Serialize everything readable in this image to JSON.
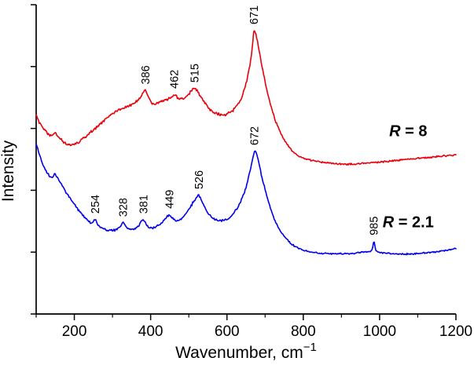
{
  "chart_data": {
    "type": "line",
    "xlabel": "Wavenumber, cm⁻¹",
    "xlabel_base": "Wavenumber, cm",
    "xlabel_sup": "−1",
    "ylabel": "Intensity",
    "xlim": [
      100,
      1200
    ],
    "ylim": [
      0,
      100
    ],
    "x_major_ticks": [
      200,
      400,
      600,
      800,
      1000,
      1200
    ],
    "x_minor_ticks": [
      100,
      300,
      500,
      700,
      900,
      1100
    ],
    "grid": false,
    "legend_position": "right-inline",
    "axis_color": "#000000",
    "background": "#ffffff",
    "series": [
      {
        "name": "R = 8",
        "name_var": "R",
        "name_rest": " = 8",
        "color": "#e8000b",
        "label_anchor": {
          "x": 1075,
          "y": 57.5
        },
        "peak_labels": [
          {
            "x": 386,
            "text": "386"
          },
          {
            "x": 462,
            "text": "462"
          },
          {
            "x": 515,
            "text": "515"
          },
          {
            "x": 671,
            "text": "671"
          }
        ],
        "points": [
          [
            100,
            64.2
          ],
          [
            107,
            62.3
          ],
          [
            115,
            60.6
          ],
          [
            124,
            59.2
          ],
          [
            133,
            58.2
          ],
          [
            142,
            57.9
          ],
          [
            150,
            58.6
          ],
          [
            158,
            57.4
          ],
          [
            167,
            56.2
          ],
          [
            176,
            55.3
          ],
          [
            186,
            54.7
          ],
          [
            196,
            54.6
          ],
          [
            207,
            55.2
          ],
          [
            219,
            56.2
          ],
          [
            232,
            57.6
          ],
          [
            246,
            59.1
          ],
          [
            260,
            60.7
          ],
          [
            275,
            62.3
          ],
          [
            290,
            63.8
          ],
          [
            305,
            65.1
          ],
          [
            320,
            66.1
          ],
          [
            335,
            66.9
          ],
          [
            350,
            67.7
          ],
          [
            362,
            68.6
          ],
          [
            374,
            70.0
          ],
          [
            386,
            72.2
          ],
          [
            394,
            69.9
          ],
          [
            403,
            68.1
          ],
          [
            413,
            67.9
          ],
          [
            425,
            68.5
          ],
          [
            437,
            69.1
          ],
          [
            449,
            69.7
          ],
          [
            462,
            70.8
          ],
          [
            471,
            69.9
          ],
          [
            481,
            69.5
          ],
          [
            491,
            70.2
          ],
          [
            502,
            71.4
          ],
          [
            515,
            72.8
          ],
          [
            527,
            71.2
          ],
          [
            539,
            68.9
          ],
          [
            552,
            66.6
          ],
          [
            566,
            65.2
          ],
          [
            581,
            64.5
          ],
          [
            596,
            64.5
          ],
          [
            611,
            65.4
          ],
          [
            626,
            67.3
          ],
          [
            640,
            70.6
          ],
          [
            651,
            74.9
          ],
          [
            660,
            80.3
          ],
          [
            666,
            85.6
          ],
          [
            671,
            91.6
          ],
          [
            677,
            89.6
          ],
          [
            684,
            85.2
          ],
          [
            692,
            79.9
          ],
          [
            701,
            74.3
          ],
          [
            711,
            69.2
          ],
          [
            723,
            64.0
          ],
          [
            736,
            59.7
          ],
          [
            751,
            56.0
          ],
          [
            768,
            53.2
          ],
          [
            786,
            51.3
          ],
          [
            806,
            50.2
          ],
          [
            828,
            49.5
          ],
          [
            852,
            49.0
          ],
          [
            877,
            48.7
          ],
          [
            902,
            48.5
          ],
          [
            928,
            48.5
          ],
          [
            953,
            48.7
          ],
          [
            978,
            48.9
          ],
          [
            1004,
            49.2
          ],
          [
            1030,
            49.5
          ],
          [
            1056,
            49.8
          ],
          [
            1082,
            50.1
          ],
          [
            1108,
            50.4
          ],
          [
            1134,
            50.7
          ],
          [
            1160,
            51.0
          ],
          [
            1180,
            51.2
          ],
          [
            1200,
            51.4
          ]
        ]
      },
      {
        "name": "R = 2.1",
        "name_var": "R",
        "name_rest": " = 2.1",
        "color": "#0000ee",
        "label_anchor": {
          "x": 1075,
          "y": 28.0
        },
        "peak_labels": [
          {
            "x": 254,
            "text": "254"
          },
          {
            "x": 328,
            "text": "328"
          },
          {
            "x": 381,
            "text": "381"
          },
          {
            "x": 449,
            "text": "449"
          },
          {
            "x": 526,
            "text": "526"
          },
          {
            "x": 672,
            "text": "672"
          },
          {
            "x": 985,
            "text": "985"
          }
        ],
        "points": [
          [
            100,
            55.0
          ],
          [
            110,
            51.0
          ],
          [
            120,
            47.5
          ],
          [
            130,
            45.5
          ],
          [
            140,
            44.3
          ],
          [
            150,
            45.2
          ],
          [
            158,
            43.5
          ],
          [
            170,
            41.0
          ],
          [
            185,
            38.0
          ],
          [
            200,
            35.5
          ],
          [
            215,
            33.0
          ],
          [
            230,
            31.0
          ],
          [
            245,
            29.3
          ],
          [
            254,
            30.4
          ],
          [
            263,
            28.6
          ],
          [
            275,
            27.6
          ],
          [
            290,
            27.0
          ],
          [
            305,
            27.2
          ],
          [
            316,
            27.8
          ],
          [
            328,
            29.4
          ],
          [
            340,
            27.6
          ],
          [
            353,
            27.3
          ],
          [
            366,
            28.2
          ],
          [
            381,
            30.4
          ],
          [
            393,
            28.3
          ],
          [
            406,
            27.9
          ],
          [
            420,
            28.7
          ],
          [
            434,
            30.1
          ],
          [
            449,
            32.0
          ],
          [
            461,
            30.5
          ],
          [
            474,
            30.3
          ],
          [
            488,
            31.8
          ],
          [
            503,
            34.4
          ],
          [
            516,
            36.9
          ],
          [
            526,
            38.3
          ],
          [
            537,
            35.8
          ],
          [
            549,
            33.0
          ],
          [
            562,
            31.2
          ],
          [
            577,
            30.3
          ],
          [
            592,
            30.4
          ],
          [
            607,
            31.3
          ],
          [
            622,
            33.3
          ],
          [
            636,
            36.4
          ],
          [
            649,
            40.6
          ],
          [
            660,
            45.8
          ],
          [
            668,
            50.5
          ],
          [
            673,
            52.6
          ],
          [
            681,
            50.3
          ],
          [
            690,
            45.0
          ],
          [
            701,
            39.8
          ],
          [
            713,
            34.6
          ],
          [
            726,
            30.1
          ],
          [
            741,
            26.6
          ],
          [
            757,
            24.1
          ],
          [
            774,
            22.2
          ],
          [
            793,
            21.0
          ],
          [
            815,
            20.2
          ],
          [
            840,
            19.7
          ],
          [
            868,
            19.5
          ],
          [
            896,
            19.5
          ],
          [
            925,
            19.6
          ],
          [
            952,
            19.9
          ],
          [
            972,
            20.2
          ],
          [
            980,
            20.6
          ],
          [
            985,
            23.4
          ],
          [
            990,
            20.6
          ],
          [
            1000,
            19.9
          ],
          [
            1022,
            19.6
          ],
          [
            1048,
            19.4
          ],
          [
            1075,
            19.4
          ],
          [
            1103,
            19.6
          ],
          [
            1131,
            19.9
          ],
          [
            1159,
            20.3
          ],
          [
            1180,
            20.7
          ],
          [
            1200,
            21.1
          ]
        ]
      }
    ]
  }
}
